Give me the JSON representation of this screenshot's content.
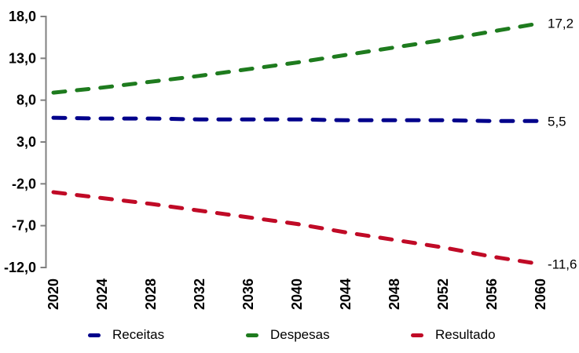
{
  "chart_data": {
    "type": "line",
    "title": "",
    "line_style": "dashed",
    "grid": false,
    "legend_position": "bottom",
    "x": [
      2020,
      2024,
      2028,
      2032,
      2036,
      2040,
      2044,
      2048,
      2052,
      2056,
      2060
    ],
    "x_labels": [
      "2020",
      "2024",
      "2028",
      "2032",
      "2036",
      "2040",
      "2044",
      "2048",
      "2052",
      "2056",
      "2060"
    ],
    "ylim": [
      -12,
      18
    ],
    "y_ticks": [
      {
        "value": 18,
        "label": "18,0"
      },
      {
        "value": 13,
        "label": "13,0"
      },
      {
        "value": 8,
        "label": "8,0"
      },
      {
        "value": 3,
        "label": "3,0"
      },
      {
        "value": -2,
        "label": "-2,0"
      },
      {
        "value": -7,
        "label": "-7,0"
      },
      {
        "value": -12,
        "label": "-12,0"
      }
    ],
    "series": [
      {
        "name": "Receitas",
        "color": "#00008B",
        "end_label": "5,5",
        "values": [
          5.9,
          5.8,
          5.8,
          5.7,
          5.7,
          5.7,
          5.6,
          5.6,
          5.6,
          5.5,
          5.5
        ]
      },
      {
        "name": "Despesas",
        "color": "#1E7B1E",
        "end_label": "17,2",
        "values": [
          8.9,
          9.5,
          10.2,
          10.9,
          11.7,
          12.5,
          13.4,
          14.3,
          15.2,
          16.2,
          17.2
        ]
      },
      {
        "name": "Resultado",
        "color": "#C00A26",
        "end_label": "-11,6",
        "values": [
          -3.0,
          -3.7,
          -4.4,
          -5.2,
          -6.0,
          -6.8,
          -7.8,
          -8.7,
          -9.6,
          -10.7,
          -11.6
        ]
      }
    ]
  },
  "axis": {
    "line_color": "#808080",
    "text_color": "#000000"
  },
  "background": "#FFFFFF"
}
